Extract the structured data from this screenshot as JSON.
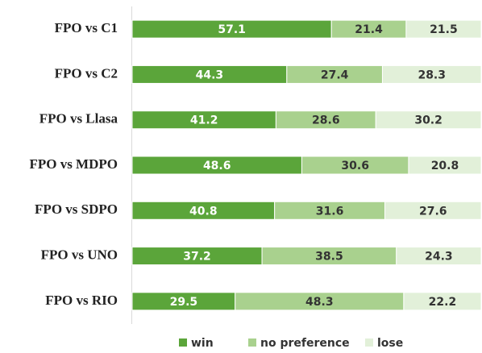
{
  "chart_data": {
    "type": "stacked_barh",
    "categories": [
      "FPO vs C1",
      "FPO vs C2",
      "FPO vs Llasa",
      "FPO vs MDPO",
      "FPO vs SDPO",
      "FPO vs UNO",
      "FPO vs RIO"
    ],
    "series": [
      {
        "name": "win",
        "color": "#5ba53a",
        "values": [
          57.1,
          44.3,
          41.2,
          48.6,
          40.8,
          37.2,
          29.5
        ]
      },
      {
        "name": "no preference",
        "color": "#a9d18e",
        "values": [
          21.4,
          27.4,
          28.6,
          30.6,
          31.6,
          38.5,
          48.3
        ]
      },
      {
        "name": "lose",
        "color": "#e2f0d9",
        "values": [
          21.5,
          28.3,
          30.2,
          20.8,
          27.6,
          24.3,
          22.2
        ]
      }
    ],
    "xlim": [
      0,
      100
    ],
    "legend": "bottom"
  }
}
